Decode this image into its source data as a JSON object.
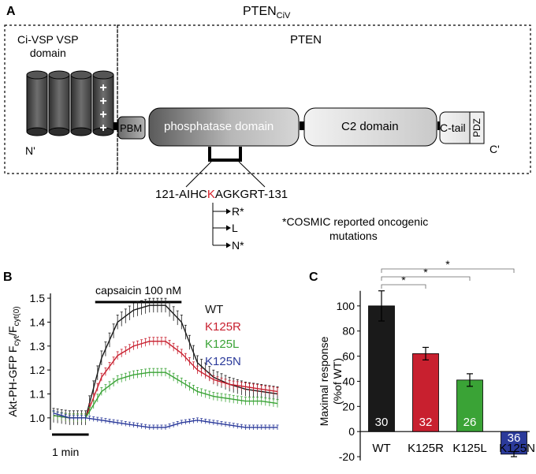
{
  "panel_a": {
    "label": "A",
    "title": "PTEN",
    "title_sub": "CiV",
    "vsp_domain": "Ci-VSP VSP domain",
    "vsp_domain_lines": [
      "Ci-VSP VSP",
      "domain"
    ],
    "pten_label": "PTEN",
    "pbm": "PBM",
    "phosphatase": "phosphatase domain",
    "c2": "C2 domain",
    "ctail": "C-tail",
    "pdz": "PDZ",
    "n_term": "N'",
    "c_term": "C'",
    "plus_signs": [
      "+",
      "+",
      "+",
      "+"
    ],
    "sequence": {
      "prefix": "121-AIHC",
      "highlight": "K",
      "suffix": "AGKGRT-131"
    },
    "mutations": [
      "R*",
      "L",
      "N*"
    ],
    "cosmic_note": "*COSMIC reported oncogenic mutations",
    "cosmic_note_lines": [
      "*COSMIC reported oncogenic",
      "mutations"
    ]
  },
  "panel_b": {
    "label": "B",
    "stimulus_label": "capsaicin 100 nM",
    "scale_bar_label": "1 min",
    "ylabel": "Akt-PH-GFP F_cyt/F_cyt(0)"
  },
  "panel_c": {
    "label": "C",
    "significance_marks": [
      "*",
      "*",
      "*"
    ]
  },
  "chart_data": [
    {
      "type": "line",
      "title": "",
      "xlabel": "",
      "ylabel": "Akt-PH-GFP Fcyt/Fcyt(0)",
      "ylim": [
        0.95,
        1.52
      ],
      "yticks": [
        1.0,
        1.1,
        1.2,
        1.3,
        1.4,
        1.5
      ],
      "x_unit": "min",
      "x": [
        0,
        0.5,
        1,
        1.5,
        2,
        2.5,
        3,
        3.5,
        4,
        4.5,
        5,
        5.5,
        6,
        6.5,
        7
      ],
      "series": [
        {
          "name": "WT",
          "color": "#1a1a1a",
          "values": [
            1.01,
            1.0,
            1.0,
            1.25,
            1.4,
            1.45,
            1.47,
            1.47,
            1.4,
            1.23,
            1.17,
            1.14,
            1.12,
            1.11,
            1.1
          ]
        },
        {
          "name": "K125R",
          "color": "#c8202f",
          "values": [
            1.01,
            1.0,
            1.0,
            1.17,
            1.26,
            1.3,
            1.32,
            1.32,
            1.27,
            1.2,
            1.16,
            1.14,
            1.13,
            1.12,
            1.11
          ]
        },
        {
          "name": "K125L",
          "color": "#3aa336",
          "values": [
            1.01,
            1.0,
            1.0,
            1.11,
            1.16,
            1.18,
            1.19,
            1.19,
            1.15,
            1.11,
            1.09,
            1.08,
            1.07,
            1.07,
            1.06
          ]
        },
        {
          "name": "K125N",
          "color": "#2b3a9a",
          "values": [
            1.02,
            1.0,
            1.0,
            0.99,
            0.98,
            0.97,
            0.96,
            0.96,
            0.98,
            0.99,
            0.98,
            0.97,
            0.96,
            0.96,
            0.96
          ]
        }
      ],
      "stimulus": {
        "label": "capsaicin 100 nM",
        "start": 1.3,
        "end": 4.0
      },
      "scale_bar": {
        "label": "1 min",
        "length": 1
      }
    },
    {
      "type": "bar",
      "title": "",
      "xlabel": "",
      "ylabel": "Maximal response (%of WT)",
      "ylim": [
        -25,
        120
      ],
      "yticks": [
        -20,
        0,
        20,
        40,
        60,
        80,
        100
      ],
      "categories": [
        "WT",
        "K125R",
        "K125L",
        "K125N"
      ],
      "values": [
        100,
        62,
        41,
        -18
      ],
      "errors": [
        12,
        5,
        5,
        2
      ],
      "n": [
        "30",
        "32",
        "26",
        "36"
      ],
      "colors": [
        "#1a1a1a",
        "#c8202f",
        "#3aa336",
        "#2b3a9a"
      ],
      "significance": [
        {
          "from": "WT",
          "to": "K125R",
          "mark": "*"
        },
        {
          "from": "WT",
          "to": "K125L",
          "mark": "*"
        },
        {
          "from": "WT",
          "to": "K125N",
          "mark": "*"
        }
      ]
    }
  ]
}
